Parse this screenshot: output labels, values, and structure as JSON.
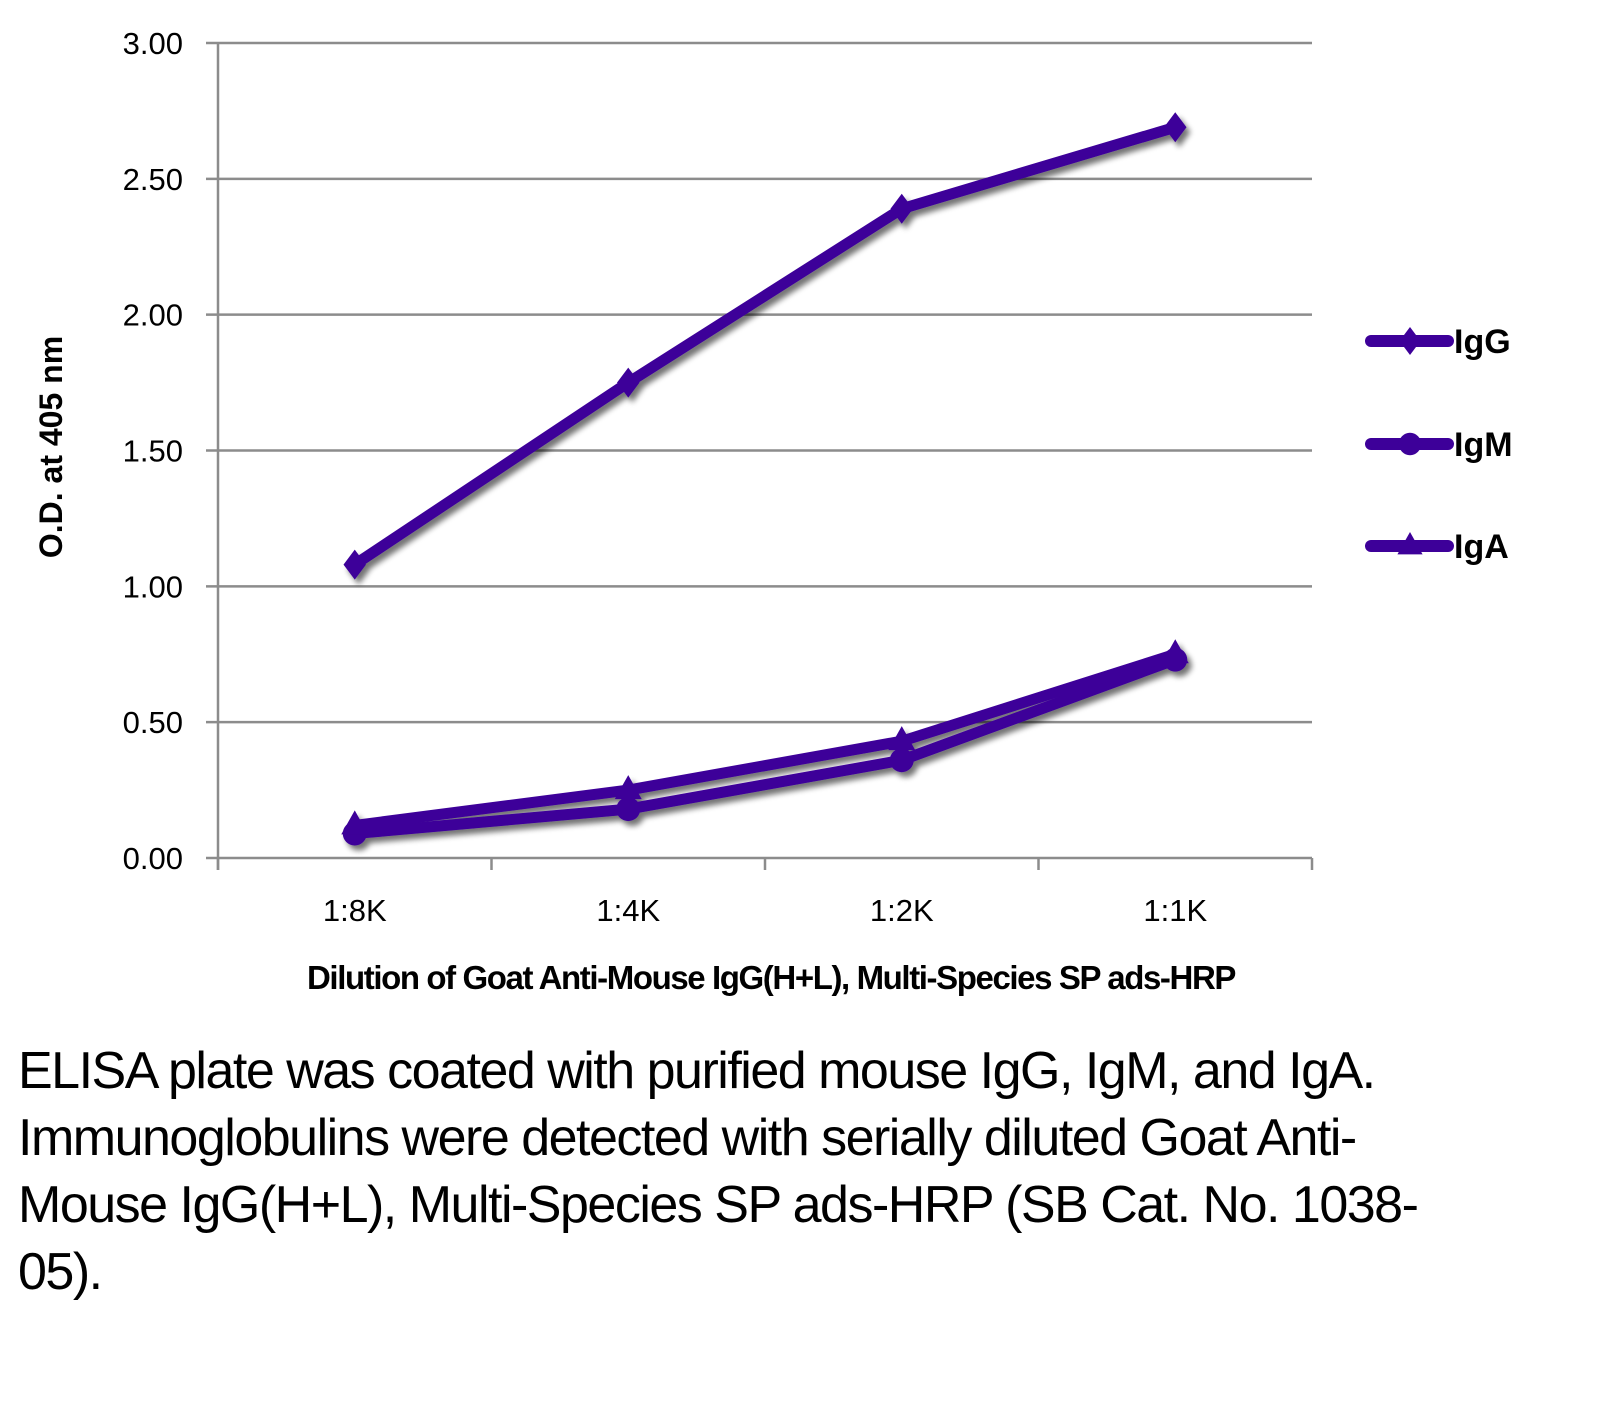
{
  "chart_data": {
    "type": "line",
    "title": "",
    "xlabel": "Dilution of Goat Anti-Mouse IgG(H+L), Multi-Species SP ads-HRP",
    "ylabel": "O.D. at 405 nm",
    "categories": [
      "1:8K",
      "1:4K",
      "1:2K",
      "1:1K"
    ],
    "ylim": [
      0,
      3.0
    ],
    "yticks": [
      "0.00",
      "0.50",
      "1.00",
      "1.50",
      "2.00",
      "2.50",
      "3.00"
    ],
    "ytick_values": [
      0,
      0.5,
      1.0,
      1.5,
      2.0,
      2.5,
      3.0
    ],
    "grid": "horizontal",
    "legend_position": "right",
    "series": [
      {
        "name": "IgG",
        "marker": "diamond",
        "color": "#3d0099",
        "values": [
          1.08,
          1.75,
          2.39,
          2.69
        ]
      },
      {
        "name": "IgM",
        "marker": "circle",
        "color": "#3d0099",
        "values": [
          0.09,
          0.18,
          0.36,
          0.73
        ]
      },
      {
        "name": "IgA",
        "marker": "triangle",
        "color": "#3d0099",
        "values": [
          0.12,
          0.25,
          0.43,
          0.75
        ]
      }
    ]
  },
  "caption": "ELISA plate was coated with purified mouse IgG, IgM, and IgA.  Immunoglobulins were detected with serially diluted Goat Anti-Mouse IgG(H+L), Multi-Species SP ads-HRP (SB Cat. No. 1038-05)."
}
